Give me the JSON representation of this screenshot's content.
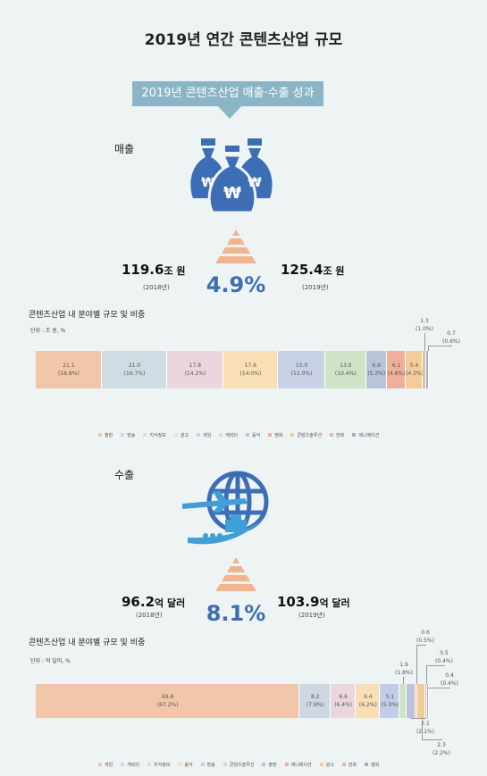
{
  "page": {
    "title": "2019년 연간 콘텐츠산업 규모",
    "banner": "2019년 콘텐츠산업 매출·수출 성과"
  },
  "sales": {
    "label": "매출",
    "value_2018": "119.6",
    "unit_2018": "조 원",
    "year_2018": "(2018년)",
    "value_2019": "125.4",
    "unit_2019": "조 원",
    "year_2019": "(2019년)",
    "growth": "4.9%",
    "chart_title": "콘텐츠산업 내 분야별 규모 및 비중",
    "unit": "단위 : 조 원, %"
  },
  "exports": {
    "label": "수출",
    "value_2018": "96.2",
    "unit_2018": "억 달러",
    "year_2018": "(2018년)",
    "value_2019": "103.9",
    "unit_2019": "억 달러",
    "year_2019": "(2019년)",
    "growth": "8.1%",
    "chart_title": "콘텐츠산업 내 분야별 규모 및 비중",
    "unit": "단위 : 억 달러, %"
  },
  "icons": {
    "sales": "money-bags-icon",
    "exports": "globe-airplane-ship-icon",
    "growth": "pyramid-icon"
  },
  "colors": {
    "accent": "#3d6eb5",
    "banner": "#8bb5c6",
    "pyramid": "#f2b48e"
  },
  "chart_data": [
    {
      "type": "bar",
      "orientation": "horizontal-stacked",
      "title": "콘텐츠산업 내 분야별 규모 및 비중",
      "unit": "단위 : 조 원, %",
      "series": [
        {
          "name": "출판",
          "value": 21.1,
          "share": 16.8,
          "label": "21.1",
          "share_label": "(16.8%)",
          "color": "#f2c6a8"
        },
        {
          "name": "방송",
          "value": 21.0,
          "share": 16.7,
          "label": "21.0",
          "share_label": "(16.7%)",
          "color": "#cfdce3"
        },
        {
          "name": "지식정보",
          "value": 17.8,
          "share": 14.2,
          "label": "17.8",
          "share_label": "(14.2%)",
          "color": "#ead7de"
        },
        {
          "name": "광고",
          "value": 17.6,
          "share": 14.0,
          "label": "17.6",
          "share_label": "(14.0%)",
          "color": "#f9dfb5"
        },
        {
          "name": "게임",
          "value": 15.0,
          "share": 12.0,
          "label": "15.0",
          "share_label": "(12.0%)",
          "color": "#c9d2e5"
        },
        {
          "name": "캐릭터",
          "value": 13.0,
          "share": 10.4,
          "label": "13.0",
          "share_label": "(10.4%)",
          "color": "#d1e3c7"
        },
        {
          "name": "음악",
          "value": 6.6,
          "share": 5.3,
          "label": "6.6",
          "share_label": "(5.3%)",
          "color": "#b9c4db"
        },
        {
          "name": "영화",
          "value": 6.1,
          "share": 4.8,
          "label": "6.1",
          "share_label": "(4.8%)",
          "color": "#efb09b"
        },
        {
          "name": "콘텐츠솔루션",
          "value": 5.4,
          "share": 4.3,
          "label": "5.4",
          "share_label": "(4.3%)",
          "color": "#f2cd9a"
        },
        {
          "name": "만화",
          "value": 1.3,
          "share": 1.0,
          "label": "1.3",
          "share_label": "(1.0%)",
          "color": "#d9bfa3"
        },
        {
          "name": "애니메이션",
          "value": 0.7,
          "share": 0.6,
          "label": "0.7",
          "share_label": "(0.6%)",
          "color": "#a9a9c6"
        }
      ]
    },
    {
      "type": "bar",
      "orientation": "horizontal-stacked",
      "title": "콘텐츠산업 내 분야별 규모 및 비중",
      "unit": "단위 : 억 달러, %",
      "series": [
        {
          "name": "게임",
          "value": 69.8,
          "share": 67.2,
          "label": "69.8",
          "share_label": "(67.2%)",
          "color": "#f2c6a8"
        },
        {
          "name": "캐릭터",
          "value": 8.2,
          "share": 7.9,
          "label": "8.2",
          "share_label": "(7.9%)",
          "color": "#cdd8e3"
        },
        {
          "name": "지식정보",
          "value": 6.6,
          "share": 6.4,
          "label": "6.6",
          "share_label": "(6.4%)",
          "color": "#ead7de"
        },
        {
          "name": "음악",
          "value": 6.4,
          "share": 6.2,
          "label": "6.4",
          "share_label": "(6.2%)",
          "color": "#f9dfb5"
        },
        {
          "name": "방송",
          "value": 5.1,
          "share": 5.0,
          "label": "5.1",
          "share_label": "(5.0%)",
          "color": "#c4cde8"
        },
        {
          "name": "콘텐츠솔루션",
          "value": 1.9,
          "share": 1.8,
          "label": "1.9",
          "share_label": "(1.8%)",
          "color": "#d1e3c7"
        },
        {
          "name": "출판",
          "value": 2.1,
          "share": 2.1,
          "label": "2.1",
          "share_label": "(2.1%)",
          "color": "#b9c4db"
        },
        {
          "name": "애니메이션",
          "value": 0.6,
          "share": 0.5,
          "label": "0.6",
          "share_label": "(0.5%)",
          "color": "#efb09b"
        },
        {
          "name": "광고",
          "value": 2.3,
          "share": 2.2,
          "label": "2.3",
          "share_label": "(2.2%)",
          "color": "#f2cd9a"
        },
        {
          "name": "만화",
          "value": 0.5,
          "share": 0.4,
          "label": "0.5",
          "share_label": "(0.4%)",
          "color": "#d9bfa3"
        },
        {
          "name": "영화",
          "value": 0.4,
          "share": 0.4,
          "label": "0.4",
          "share_label": "(0.4%)",
          "color": "#a9a9c6"
        }
      ]
    }
  ]
}
